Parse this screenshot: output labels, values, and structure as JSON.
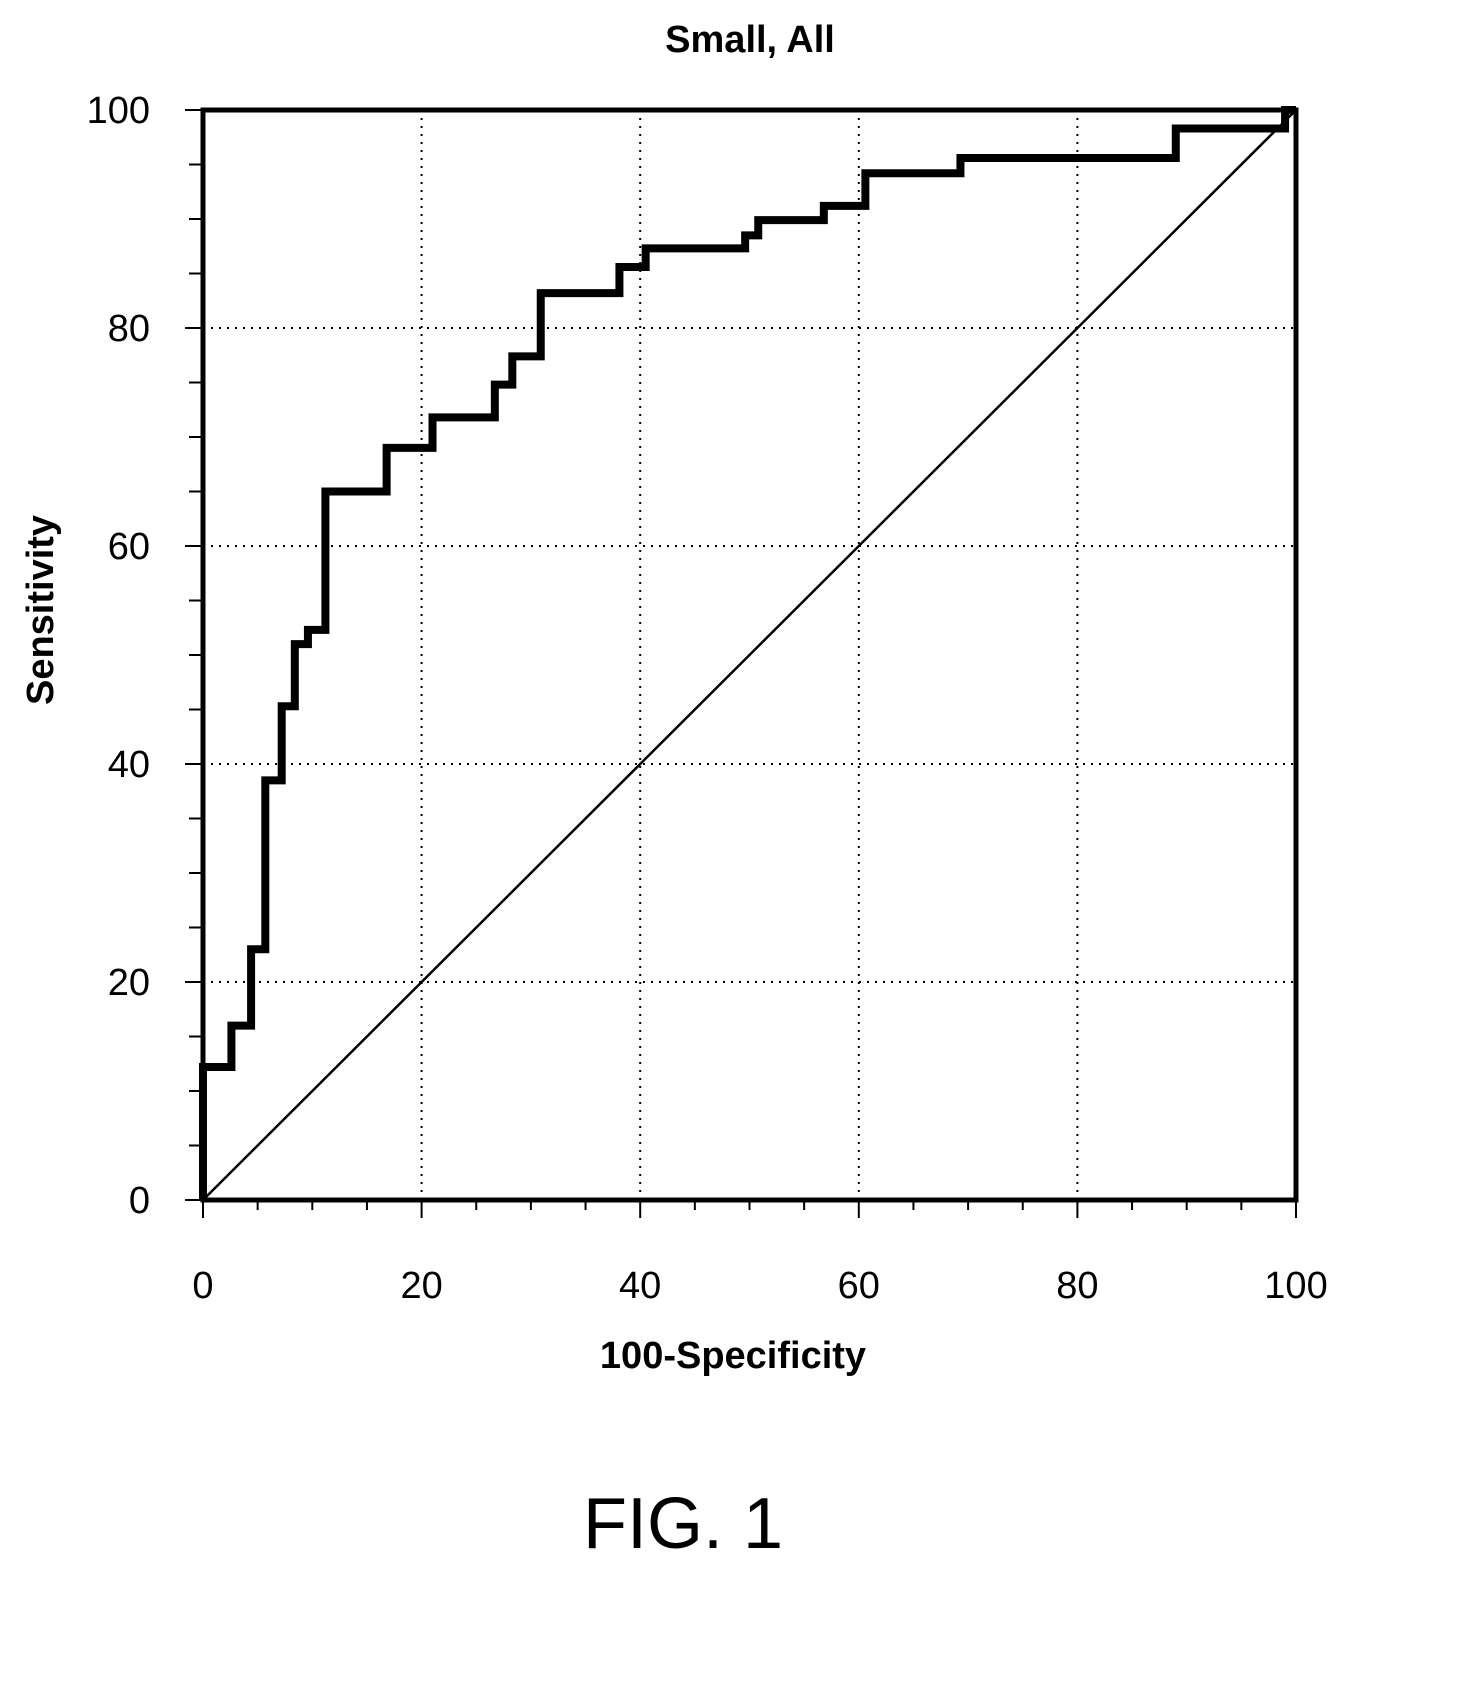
{
  "chart_data": {
    "type": "line",
    "title": "Small, All",
    "xlabel": "100-Specificity",
    "ylabel": "Sensitivity",
    "xlim": [
      0,
      100
    ],
    "ylim": [
      0,
      100
    ],
    "xticks": [
      "0",
      "20",
      "40",
      "60",
      "80",
      "100"
    ],
    "yticks": [
      "0",
      "20",
      "40",
      "60",
      "80",
      "100"
    ],
    "grid": true,
    "caption": "FIG. 1",
    "series": [
      {
        "name": "ROC curve",
        "step": true,
        "points": [
          [
            0,
            0
          ],
          [
            0,
            12.2
          ],
          [
            2.6,
            12.2
          ],
          [
            2.6,
            16
          ],
          [
            4.4,
            16
          ],
          [
            4.4,
            23
          ],
          [
            5.7,
            23
          ],
          [
            5.7,
            38.5
          ],
          [
            7.2,
            38.5
          ],
          [
            7.2,
            45.3
          ],
          [
            8.4,
            45.3
          ],
          [
            8.4,
            51
          ],
          [
            9.6,
            51
          ],
          [
            9.6,
            52.3
          ],
          [
            11.2,
            52.3
          ],
          [
            11.2,
            65
          ],
          [
            16.8,
            65
          ],
          [
            16.8,
            69
          ],
          [
            21,
            69
          ],
          [
            21,
            71.8
          ],
          [
            26.7,
            71.8
          ],
          [
            26.7,
            74.8
          ],
          [
            28.3,
            74.8
          ],
          [
            28.3,
            77.4
          ],
          [
            30.9,
            77.4
          ],
          [
            30.9,
            83.2
          ],
          [
            38.1,
            83.2
          ],
          [
            38.1,
            85.6
          ],
          [
            40.5,
            85.6
          ],
          [
            40.5,
            87.3
          ],
          [
            49.6,
            87.3
          ],
          [
            49.6,
            88.5
          ],
          [
            50.8,
            88.5
          ],
          [
            50.8,
            89.9
          ],
          [
            56.8,
            89.9
          ],
          [
            56.8,
            91.2
          ],
          [
            60.6,
            91.2
          ],
          [
            60.6,
            94.2
          ],
          [
            69.3,
            94.2
          ],
          [
            69.3,
            95.6
          ],
          [
            89,
            95.6
          ],
          [
            89,
            98.3
          ],
          [
            99,
            98.3
          ],
          [
            99,
            100
          ],
          [
            100,
            100
          ]
        ]
      },
      {
        "name": "Reference line",
        "points": [
          [
            0,
            0
          ],
          [
            100,
            100
          ]
        ]
      }
    ]
  }
}
